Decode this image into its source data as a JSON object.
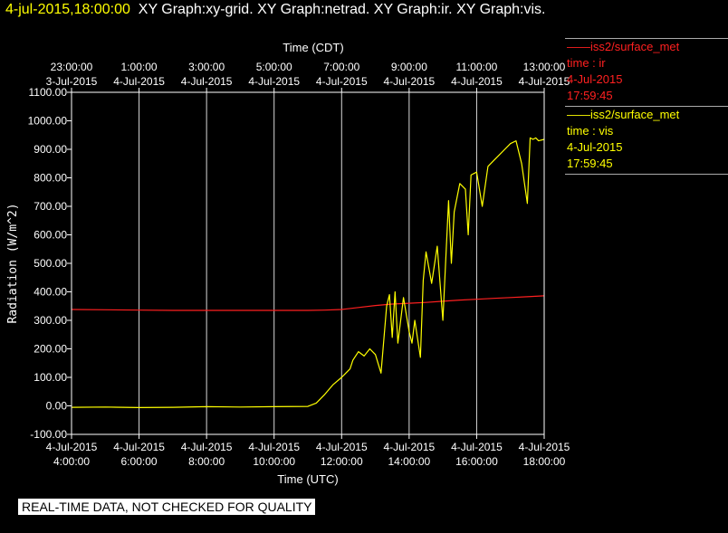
{
  "header": {
    "timestamp": "4-jul-2015,18:00:00",
    "titles": "XY Graph:xy-grid.  XY Graph:netrad.  XY Graph:ir.  XY Graph:vis."
  },
  "banner": "REAL-TIME DATA, NOT CHECKED FOR QUALITY",
  "legend": [
    {
      "line": "——iss2/surface_met",
      "var": "time : ir",
      "date": "4-Jul-2015",
      "time": "17:59:45",
      "color": "#ff2020"
    },
    {
      "line": "——iss2/surface_met",
      "var": "time : vis",
      "date": "4-Jul-2015",
      "time": "17:59:45",
      "color": "#ffff00"
    }
  ],
  "chart_data": {
    "type": "line",
    "title": "",
    "xlabel": "Time (UTC)",
    "xlabel_top": "Time (CDT)",
    "ylabel": "Radiation (W/m^2)",
    "xlim": [
      "2015-07-04 04:00",
      "2015-07-04 18:00"
    ],
    "ylim": [
      -100,
      1100
    ],
    "grid": true,
    "legend": "right",
    "y_ticks": [
      "-100.00",
      "0.00",
      "100.00",
      "200.00",
      "300.00",
      "400.00",
      "500.00",
      "600.00",
      "700.00",
      "800.00",
      "900.00",
      "1000.00",
      "1100.00"
    ],
    "x_ticks_bottom": [
      {
        "date": "4-Jul-2015",
        "time": "4:00:00"
      },
      {
        "date": "4-Jul-2015",
        "time": "6:00:00"
      },
      {
        "date": "4-Jul-2015",
        "time": "8:00:00"
      },
      {
        "date": "4-Jul-2015",
        "time": "10:00:00"
      },
      {
        "date": "4-Jul-2015",
        "time": "12:00:00"
      },
      {
        "date": "4-Jul-2015",
        "time": "14:00:00"
      },
      {
        "date": "4-Jul-2015",
        "time": "16:00:00"
      },
      {
        "date": "4-Jul-2015",
        "time": "18:00:00"
      }
    ],
    "x_ticks_top": [
      {
        "time": "23:00:00",
        "date": "3-Jul-2015"
      },
      {
        "time": "1:00:00",
        "date": "4-Jul-2015"
      },
      {
        "time": "3:00:00",
        "date": "4-Jul-2015"
      },
      {
        "time": "5:00:00",
        "date": "4-Jul-2015"
      },
      {
        "time": "7:00:00",
        "date": "4-Jul-2015"
      },
      {
        "time": "9:00:00",
        "date": "4-Jul-2015"
      },
      {
        "time": "11:00:00",
        "date": "4-Jul-2015"
      },
      {
        "time": "13:00:00",
        "date": "4-Jul-2015"
      }
    ],
    "series": [
      {
        "name": "time : ir",
        "color": "#ff2020",
        "x": [
          "04:00",
          "05:00",
          "06:00",
          "07:00",
          "08:00",
          "09:00",
          "10:00",
          "11:00",
          "11:30",
          "12:00",
          "12:30",
          "13:00",
          "13:30",
          "14:00",
          "14:30",
          "15:00",
          "15:30",
          "16:00",
          "16:30",
          "17:00",
          "17:30",
          "18:00"
        ],
        "values": [
          338,
          337,
          336,
          335,
          335,
          335,
          335,
          335,
          336,
          338,
          345,
          352,
          357,
          360,
          363,
          367,
          371,
          374,
          377,
          380,
          383,
          386
        ]
      },
      {
        "name": "time : vis",
        "color": "#ffff00",
        "x": [
          "04:00",
          "05:00",
          "06:00",
          "07:00",
          "08:00",
          "09:00",
          "10:00",
          "11:00",
          "11:15",
          "11:30",
          "11:45",
          "12:00",
          "12:15",
          "12:20",
          "12:30",
          "12:40",
          "12:50",
          "13:00",
          "13:10",
          "13:20",
          "13:25",
          "13:30",
          "13:35",
          "13:40",
          "13:50",
          "14:00",
          "14:05",
          "14:10",
          "14:20",
          "14:25",
          "14:30",
          "14:40",
          "14:50",
          "15:00",
          "15:10",
          "15:15",
          "15:20",
          "15:30",
          "15:40",
          "15:45",
          "15:50",
          "16:00",
          "16:10",
          "16:20",
          "16:30",
          "16:40",
          "16:50",
          "17:00",
          "17:10",
          "17:20",
          "17:30",
          "17:35",
          "17:40",
          "17:45",
          "17:50",
          "18:00"
        ],
        "values": [
          -5,
          -4,
          -6,
          -5,
          -3,
          -4,
          -3,
          -2,
          10,
          40,
          75,
          100,
          130,
          160,
          190,
          175,
          200,
          180,
          115,
          350,
          390,
          240,
          400,
          220,
          380,
          260,
          220,
          300,
          170,
          440,
          540,
          430,
          560,
          300,
          720,
          500,
          680,
          780,
          760,
          600,
          810,
          820,
          700,
          840,
          860,
          880,
          900,
          920,
          930,
          850,
          710,
          940,
          935,
          940,
          930,
          935
        ]
      }
    ]
  }
}
